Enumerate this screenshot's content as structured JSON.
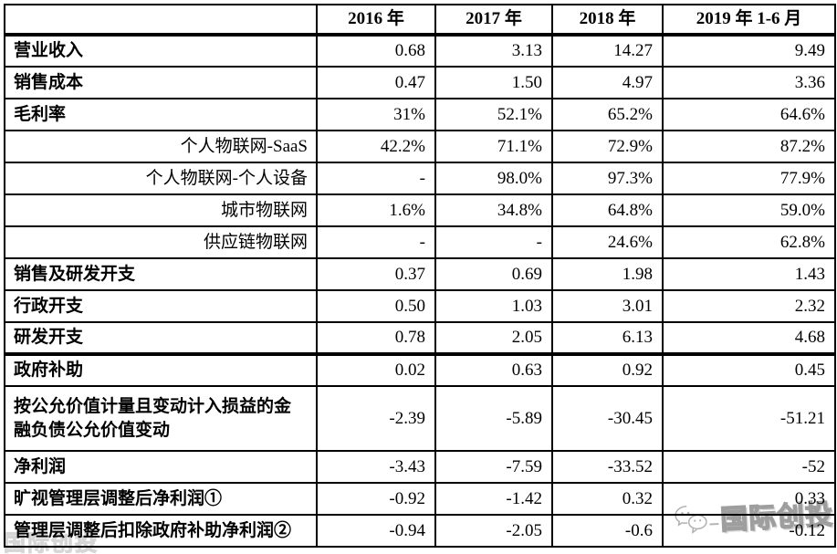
{
  "table": {
    "header": {
      "label_col": "",
      "years": [
        "2016 年",
        "2017 年",
        "2018 年",
        "2019 年 1-6 月"
      ]
    },
    "rows": [
      {
        "label": "营业收入",
        "style": "primary",
        "values": [
          "0.68",
          "3.13",
          "14.27",
          "9.49"
        ]
      },
      {
        "label": "销售成本",
        "style": "primary",
        "values": [
          "0.47",
          "1.50",
          "4.97",
          "3.36"
        ]
      },
      {
        "label": "毛利率",
        "style": "primary",
        "values": [
          "31%",
          "52.1%",
          "65.2%",
          "64.6%"
        ]
      },
      {
        "label": "个人物联网-SaaS",
        "style": "sub",
        "values": [
          "42.2%",
          "71.1%",
          "72.9%",
          "87.2%"
        ]
      },
      {
        "label": "个人物联网-个人设备",
        "style": "sub",
        "values": [
          "-",
          "98.0%",
          "97.3%",
          "77.9%"
        ]
      },
      {
        "label": "城市物联网",
        "style": "sub",
        "values": [
          "1.6%",
          "34.8%",
          "64.8%",
          "59.0%"
        ]
      },
      {
        "label": "供应链物联网",
        "style": "sub",
        "values": [
          "-",
          "-",
          "24.6%",
          "62.8%"
        ]
      },
      {
        "label": "销售及研发开支",
        "style": "primary",
        "values": [
          "0.37",
          "0.69",
          "1.98",
          "1.43"
        ]
      },
      {
        "label": "行政开支",
        "style": "primary",
        "values": [
          "0.50",
          "1.03",
          "3.01",
          "2.32"
        ]
      },
      {
        "label": "研发开支",
        "style": "primary",
        "thick_bottom": true,
        "values": [
          "0.78",
          "2.05",
          "6.13",
          "4.68"
        ]
      },
      {
        "label": "政府补助",
        "style": "primary",
        "values": [
          "0.02",
          "0.63",
          "0.92",
          "0.45"
        ]
      },
      {
        "label": "按公允价值计量且变动计入损益的金融负债公允价值变动",
        "style": "primary",
        "tall": true,
        "values": [
          "-2.39",
          "-5.89",
          "-30.45",
          "-51.21"
        ]
      },
      {
        "label": "净利润",
        "style": "primary",
        "values": [
          "-3.43",
          "-7.59",
          "-33.52",
          "-52"
        ]
      },
      {
        "label": "旷视管理层调整后净利润①",
        "style": "primary",
        "values": [
          "-0.92",
          "-1.42",
          "0.32",
          "0.33"
        ]
      },
      {
        "label": "管理层调整后扣除政府补助净利润②",
        "style": "primary",
        "values": [
          "-0.94",
          "-2.05",
          "-0.6",
          "-0.12"
        ]
      }
    ]
  },
  "watermark": {
    "brand_text": "国际创投",
    "corner_text": "国际创投"
  }
}
